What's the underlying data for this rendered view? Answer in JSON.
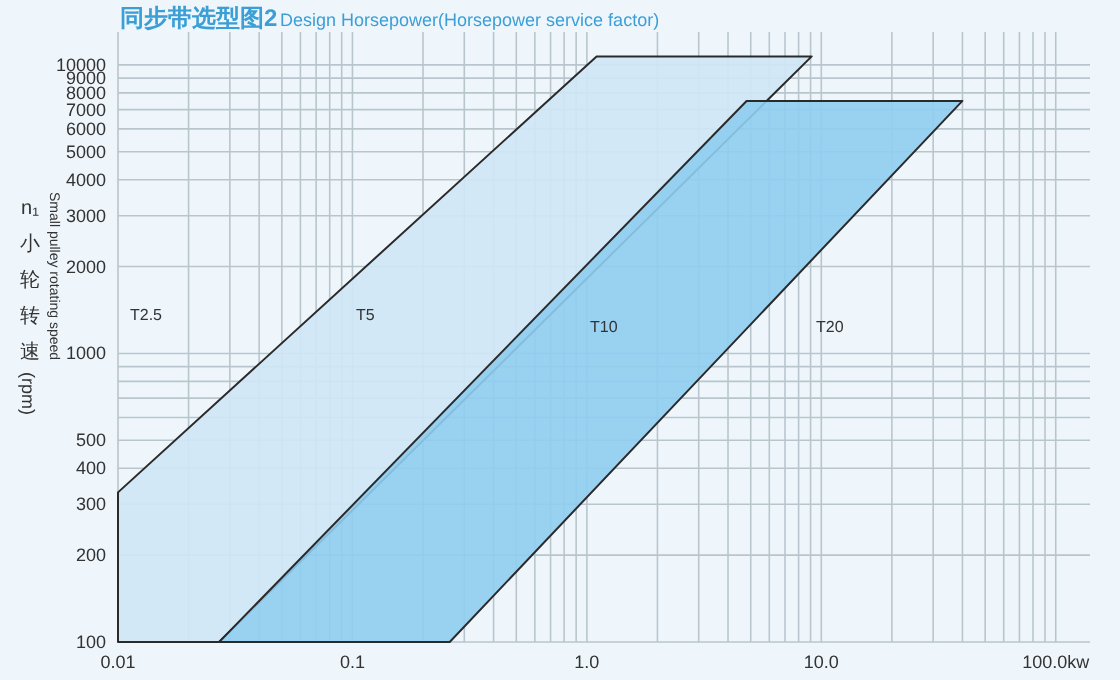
{
  "chart_data": {
    "type": "area",
    "title": "同步带选型图2",
    "subtitle": "Design Horsepower(Horsepower service factor)",
    "ylabel": "n₁小轮转速(rpm)",
    "log": "xy",
    "grid": true,
    "xlim": [
      0.01,
      140
    ],
    "ylim": [
      100,
      13000
    ],
    "xticks": [
      {
        "value": 0.01,
        "label": "0.01"
      },
      {
        "value": 0.02,
        "label": null
      },
      {
        "value": 0.03,
        "label": null
      },
      {
        "value": 0.04,
        "label": null
      },
      {
        "value": 0.05,
        "label": null
      },
      {
        "value": 0.06,
        "label": null
      },
      {
        "value": 0.07,
        "label": null
      },
      {
        "value": 0.08,
        "label": null
      },
      {
        "value": 0.09,
        "label": null
      },
      {
        "value": 0.1,
        "label": "0.1"
      },
      {
        "value": 0.2,
        "label": null
      },
      {
        "value": 0.3,
        "label": null
      },
      {
        "value": 0.4,
        "label": null
      },
      {
        "value": 0.5,
        "label": null
      },
      {
        "value": 0.6,
        "label": null
      },
      {
        "value": 0.7,
        "label": null
      },
      {
        "value": 0.8,
        "label": null
      },
      {
        "value": 0.9,
        "label": null
      },
      {
        "value": 1,
        "label": "1.0"
      },
      {
        "value": 2,
        "label": null
      },
      {
        "value": 3,
        "label": null
      },
      {
        "value": 4,
        "label": null
      },
      {
        "value": 5,
        "label": null
      },
      {
        "value": 6,
        "label": null
      },
      {
        "value": 7,
        "label": null
      },
      {
        "value": 8,
        "label": null
      },
      {
        "value": 9,
        "label": null
      },
      {
        "value": 10,
        "label": "10.0"
      },
      {
        "value": 20,
        "label": null
      },
      {
        "value": 30,
        "label": null
      },
      {
        "value": 40,
        "label": null
      },
      {
        "value": 50,
        "label": null
      },
      {
        "value": 60,
        "label": null
      },
      {
        "value": 70,
        "label": null
      },
      {
        "value": 80,
        "label": null
      },
      {
        "value": 90,
        "label": null
      },
      {
        "value": 100,
        "label": "100.0kw"
      }
    ],
    "yticks": [
      100,
      200,
      300,
      400,
      500,
      {
        "value": 600,
        "label": null
      },
      {
        "value": 700,
        "label": null
      },
      {
        "value": 800,
        "label": null
      },
      {
        "value": 900,
        "label": null
      },
      1000,
      2000,
      3000,
      4000,
      5000,
      6000,
      7000,
      8000,
      9000,
      10000
    ],
    "series": [
      {
        "color": "#cfe7f6",
        "x": [
          0.01,
          0.01,
          1.1,
          9.1,
          0.027
        ],
        "values": [
          100,
          330,
          10700,
          10700,
          100
        ]
      },
      {
        "color": "#8fcdf0",
        "x": [
          0.027,
          4.8,
          40,
          0.26
        ],
        "values": [
          100,
          7500,
          7500,
          100
        ]
      }
    ],
    "annotations": [
      "T2.5",
      "T5",
      "T10",
      "T20",
      "Small pulley rotating speed"
    ]
  }
}
